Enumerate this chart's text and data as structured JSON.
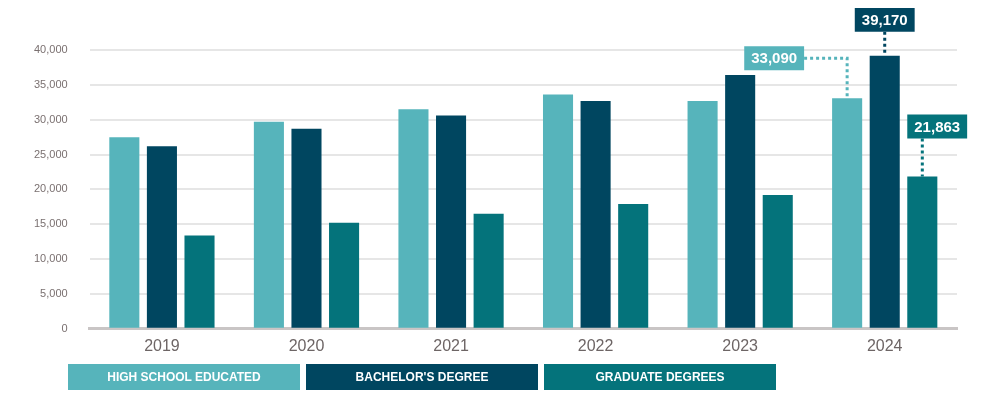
{
  "chart_data": {
    "type": "bar",
    "categories": [
      "2019",
      "2020",
      "2021",
      "2022",
      "2023",
      "2024"
    ],
    "series": [
      {
        "name": "HIGH SCHOOL EDUCATED",
        "color": "#56b4bb",
        "values": [
          27500,
          29700,
          31500,
          33600,
          32700,
          33090
        ],
        "value_labels": [
          null,
          null,
          null,
          null,
          null,
          "33,090"
        ]
      },
      {
        "name": "BACHELOR'S DEGREE",
        "color": "#004660",
        "values": [
          26200,
          28700,
          30600,
          32700,
          36400,
          39170
        ],
        "value_labels": [
          null,
          null,
          null,
          null,
          null,
          "39,170"
        ]
      },
      {
        "name": "GRADUATE DEGREES",
        "color": "#04737b",
        "values": [
          13400,
          15200,
          16500,
          17900,
          19200,
          21863
        ],
        "value_labels": [
          null,
          null,
          null,
          null,
          null,
          "21,863"
        ]
      }
    ],
    "ylim": [
      0,
      40000
    ],
    "yticks": [
      0,
      {
        "value": 5000,
        "label": "5,000"
      },
      {
        "value": 10000,
        "label": "10,000"
      },
      {
        "value": 15000,
        "label": "15,000"
      },
      {
        "value": 20000,
        "label": "20,000"
      },
      {
        "value": 25000,
        "label": "25,000"
      },
      {
        "value": 30000,
        "label": "30,000"
      },
      {
        "value": 35000,
        "label": "35,000"
      },
      {
        "value": 40000,
        "label": "40,000"
      }
    ],
    "grid": "y",
    "legend": "bottom"
  }
}
